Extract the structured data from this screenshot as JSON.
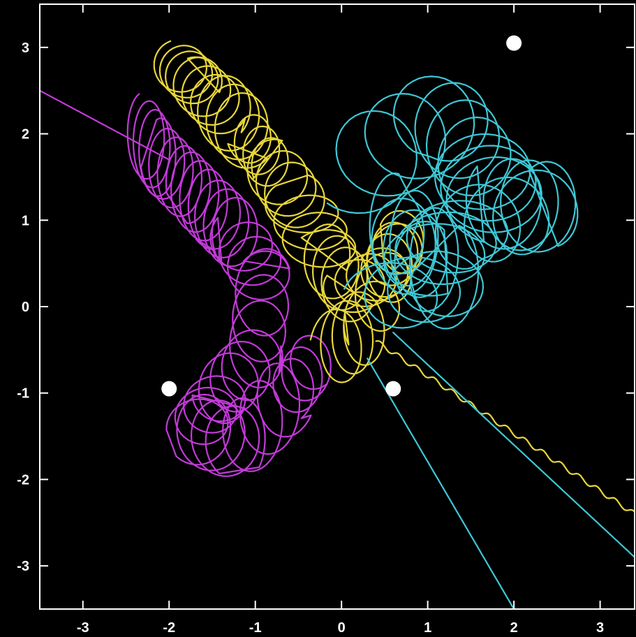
{
  "chart_data": {
    "type": "line",
    "title": "",
    "xlabel": "",
    "ylabel": "",
    "xlim": [
      -3.5,
      3.4
    ],
    "ylim": [
      -3.5,
      3.5
    ],
    "x_ticks": [
      -3,
      -2,
      -1,
      0,
      1,
      2,
      3
    ],
    "y_ticks": [
      3,
      2,
      1,
      0,
      -1,
      -2,
      -3
    ],
    "x_tick_labels": [
      "-3",
      "-2",
      "-1",
      "0",
      "1",
      "2",
      "3"
    ],
    "y_tick_labels": [
      "3",
      "2",
      "1",
      "0",
      "-1",
      "-2",
      "-3"
    ],
    "background": "#000000",
    "frame_color": "#ffffff",
    "grid": false,
    "legend": "none",
    "bodies": [
      {
        "x": -2.0,
        "y": -0.95,
        "color": "#ffffff"
      },
      {
        "x": 0.6,
        "y": -0.95,
        "color": "#ffffff"
      },
      {
        "x": 2.0,
        "y": 3.05,
        "color": "#ffffff"
      }
    ],
    "series": [
      {
        "color": "#c23ad8",
        "loop_centers": [
          [
            -2.3,
            2.0
          ],
          [
            -2.1,
            1.7
          ],
          [
            -1.8,
            1.4
          ],
          [
            -1.5,
            1.1
          ],
          [
            -1.2,
            0.8
          ],
          [
            -0.9,
            0.3
          ],
          [
            -1.0,
            -0.6
          ],
          [
            -1.4,
            -1.0
          ],
          [
            -1.7,
            -1.4
          ],
          [
            -1.2,
            -1.6
          ],
          [
            -0.6,
            -1.0
          ],
          [
            -0.3,
            -0.6
          ]
        ],
        "escape_path": [
          [
            -2.0,
            1.7
          ],
          [
            -3.5,
            2.5
          ]
        ]
      },
      {
        "color": "#e8d63a",
        "loop_centers": [
          [
            -1.9,
            2.8
          ],
          [
            -1.7,
            2.6
          ],
          [
            -1.4,
            2.3
          ],
          [
            -1.1,
            2.0
          ],
          [
            -0.8,
            1.6
          ],
          [
            -0.5,
            1.2
          ],
          [
            -0.2,
            0.6
          ],
          [
            0.1,
            0.2
          ],
          [
            0.5,
            0.4
          ],
          [
            0.7,
            0.8
          ],
          [
            0.3,
            -0.2
          ],
          [
            -0.1,
            -0.5
          ]
        ],
        "escape_path": [
          [
            0.4,
            -0.4
          ],
          [
            3.4,
            -2.4
          ]
        ]
      },
      {
        "color": "#3ec8d6",
        "loop_centers": [
          [
            0.2,
            1.6
          ],
          [
            1.2,
            2.2
          ],
          [
            1.6,
            1.6
          ],
          [
            1.8,
            1.2
          ],
          [
            2.4,
            1.15
          ],
          [
            1.4,
            0.9
          ],
          [
            1.0,
            0.5
          ],
          [
            0.6,
            0.9
          ],
          [
            1.3,
            0.3
          ],
          [
            0.5,
            0.1
          ]
        ],
        "escape_path": [
          [
            0.3,
            -0.6
          ],
          [
            2.0,
            -3.5
          ]
        ],
        "escape_path_2": [
          [
            0.6,
            -0.3
          ],
          [
            3.4,
            -2.9
          ]
        ]
      }
    ]
  }
}
